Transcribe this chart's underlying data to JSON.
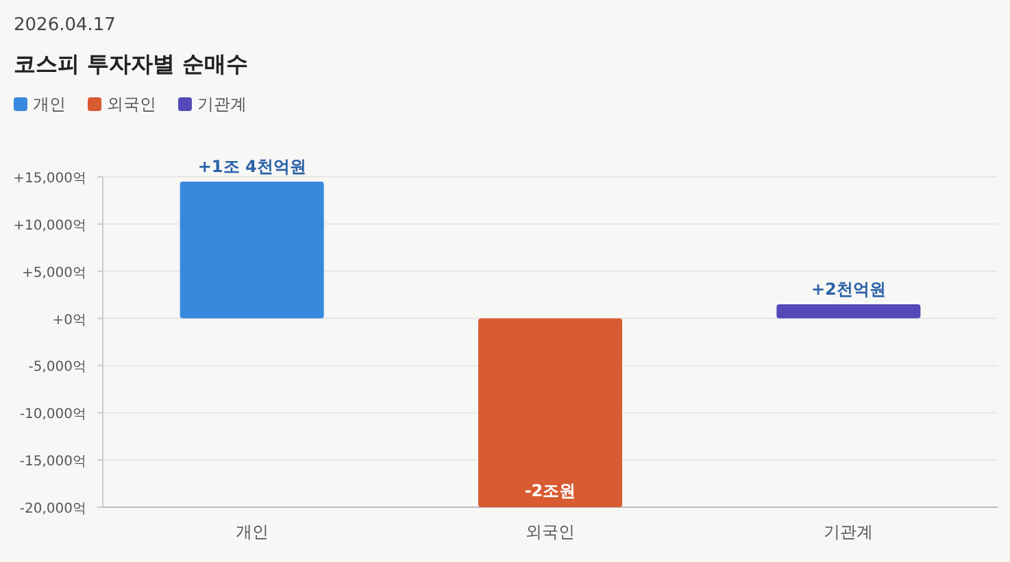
{
  "chart_data": {
    "type": "bar",
    "title": "코스피 투자자별 순매수",
    "subtitle": "2026.04.17",
    "categories": [
      "개인",
      "외국인",
      "기관계"
    ],
    "series": [
      {
        "name": "개인",
        "color": "#3789de",
        "values": [
          14500,
          null,
          null
        ]
      },
      {
        "name": "외국인",
        "color": "#d95b31",
        "values": [
          null,
          -20000,
          null
        ]
      },
      {
        "name": "기관계",
        "color": "#5548b8",
        "values": [
          null,
          null,
          1500
        ]
      }
    ],
    "value_labels": [
      "+1조 4천억원",
      "-2조원",
      "+2천억원"
    ],
    "ylim": [
      -20000,
      15000
    ],
    "yticks": [
      {
        "value": -20000,
        "label": "-20,000억"
      },
      {
        "value": -15000,
        "label": "-15,000억"
      },
      {
        "value": -10000,
        "label": "-10,000억"
      },
      {
        "value": -5000,
        "label": "-5,000억"
      },
      {
        "value": 0,
        "label": "+0억"
      },
      {
        "value": 5000,
        "label": "+5,000억"
      },
      {
        "value": 10000,
        "label": "+10,000억"
      },
      {
        "value": 15000,
        "label": "+15,000억"
      }
    ],
    "grid": "y",
    "legend": "top left"
  }
}
